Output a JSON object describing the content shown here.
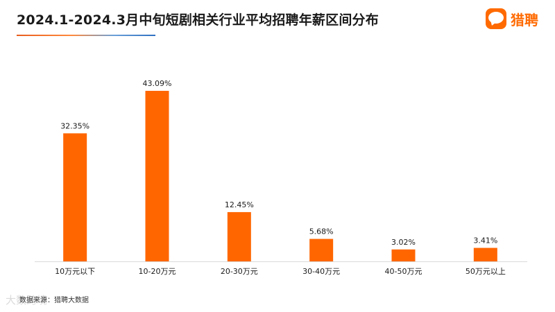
{
  "title": "2024.1-2024.3月中旬短剧相关行业平均招聘年薪区间分布",
  "logo": {
    "text": "猎聘"
  },
  "source": "数据来源：猎聘大数据",
  "watermark": "大数跨境",
  "colors": {
    "bar": "#ff6600",
    "accent": "#ff6a00",
    "axis": "#d9d9d9"
  },
  "chart_data": {
    "type": "bar",
    "title": "2024.1-2024.3月中旬短剧相关行业平均招聘年薪区间分布",
    "xlabel": "",
    "ylabel": "",
    "categories": [
      "10万元以下",
      "10-20万元",
      "20-30万元",
      "30-40万元",
      "40-50万元",
      "50万元以上"
    ],
    "values": [
      32.35,
      43.09,
      12.45,
      5.68,
      3.02,
      3.41
    ],
    "value_labels": [
      "32.35%",
      "43.09%",
      "12.45%",
      "5.68%",
      "3.02%",
      "3.41%"
    ],
    "ylim": [
      0,
      45
    ],
    "grid": false,
    "legend": "none"
  }
}
